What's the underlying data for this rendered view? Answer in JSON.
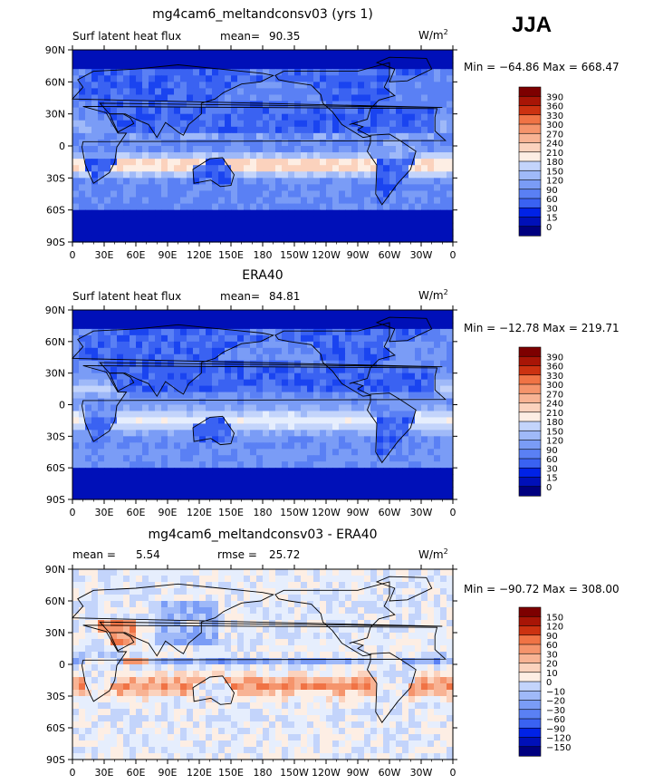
{
  "season": "JJA",
  "colors": {
    "levels": [
      "#00007f",
      "#0010b8",
      "#0022e6",
      "#1a44f0",
      "#3a62f2",
      "#5a80f4",
      "#7a9cf6",
      "#9fb9f8",
      "#c3d4fb",
      "#e6eefd",
      "#fdeee4",
      "#fbd2bd",
      "#f8b394",
      "#f5946c",
      "#f07345",
      "#e45326",
      "#cc3211",
      "#a81506",
      "#7d0000"
    ]
  },
  "panels": [
    {
      "title": "mg4cam6_meltandconsv03 (yrs 1)",
      "left_label": "Surf latent heat flux",
      "mean_label": "mean=",
      "mean_value": "90.35",
      "units_base": "W/m",
      "units_exp": "2",
      "minmax": "Min = −64.86 Max = 668.47",
      "colorbar_labels": [
        "390",
        "360",
        "330",
        "300",
        "270",
        "240",
        "210",
        "180",
        "150",
        "120",
        "90",
        "60",
        "30",
        "15",
        "0"
      ]
    },
    {
      "title": "ERA40",
      "left_label": "Surf latent heat flux",
      "mean_label": "mean=",
      "mean_value": "84.81",
      "units_base": "W/m",
      "units_exp": "2",
      "minmax": "Min = −12.78 Max = 219.71",
      "colorbar_labels": [
        "390",
        "360",
        "330",
        "300",
        "270",
        "240",
        "210",
        "180",
        "150",
        "120",
        "90",
        "60",
        "30",
        "15",
        "0"
      ]
    },
    {
      "title": "mg4cam6_meltandconsv03 - ERA40",
      "left_label": "mean =",
      "mean_value": "5.54",
      "mean_label": "rmse =",
      "rmse_value": "25.72",
      "units_base": "W/m",
      "units_exp": "2",
      "minmax": "Min = −90.72 Max = 308.00",
      "colorbar_labels": [
        "150",
        "120",
        "90",
        "60",
        "30",
        "20",
        "10",
        "0",
        "−10",
        "−20",
        "−30",
        "−60",
        "−90",
        "−120",
        "−150"
      ]
    }
  ],
  "chart_data": [
    {
      "type": "heatmap",
      "title": "mg4cam6_meltandconsv03 (yrs 1)",
      "variable": "Surf latent heat flux",
      "mean": 90.35,
      "min": -64.86,
      "max": 668.47,
      "units": "W/m2",
      "x_ticks": [
        "0",
        "30E",
        "60E",
        "90E",
        "120E",
        "150E",
        "180",
        "150W",
        "120W",
        "90W",
        "60W",
        "30W",
        "0"
      ],
      "y_ticks": [
        "90N",
        "60N",
        "30N",
        "0",
        "30S",
        "60S",
        "90S"
      ],
      "xlim": [
        0,
        360
      ],
      "ylim": [
        -90,
        90
      ],
      "levels": [
        0,
        15,
        30,
        60,
        90,
        120,
        150,
        180,
        210,
        240,
        270,
        300,
        330,
        360,
        390
      ]
    },
    {
      "type": "heatmap",
      "title": "ERA40",
      "variable": "Surf latent heat flux",
      "mean": 84.81,
      "min": -12.78,
      "max": 219.71,
      "units": "W/m2",
      "x_ticks": [
        "0",
        "30E",
        "60E",
        "90E",
        "120E",
        "150E",
        "180",
        "150W",
        "120W",
        "90W",
        "60W",
        "30W",
        "0"
      ],
      "y_ticks": [
        "90N",
        "60N",
        "30N",
        "0",
        "30S",
        "60S",
        "90S"
      ],
      "xlim": [
        0,
        360
      ],
      "ylim": [
        -90,
        90
      ],
      "levels": [
        0,
        15,
        30,
        60,
        90,
        120,
        150,
        180,
        210,
        240,
        270,
        300,
        330,
        360,
        390
      ]
    },
    {
      "type": "heatmap",
      "title": "mg4cam6_meltandconsv03 - ERA40",
      "mean": 5.54,
      "rmse": 25.72,
      "min": -90.72,
      "max": 308.0,
      "units": "W/m2",
      "x_ticks": [
        "0",
        "30E",
        "60E",
        "90E",
        "120E",
        "150E",
        "180",
        "150W",
        "120W",
        "90W",
        "60W",
        "30W",
        "0"
      ],
      "y_ticks": [
        "90N",
        "60N",
        "30N",
        "0",
        "30S",
        "60S",
        "90S"
      ],
      "xlim": [
        0,
        360
      ],
      "ylim": [
        -90,
        90
      ],
      "levels": [
        -150,
        -120,
        -90,
        -60,
        -30,
        -20,
        -10,
        0,
        10,
        20,
        30,
        60,
        90,
        120,
        150
      ]
    }
  ]
}
